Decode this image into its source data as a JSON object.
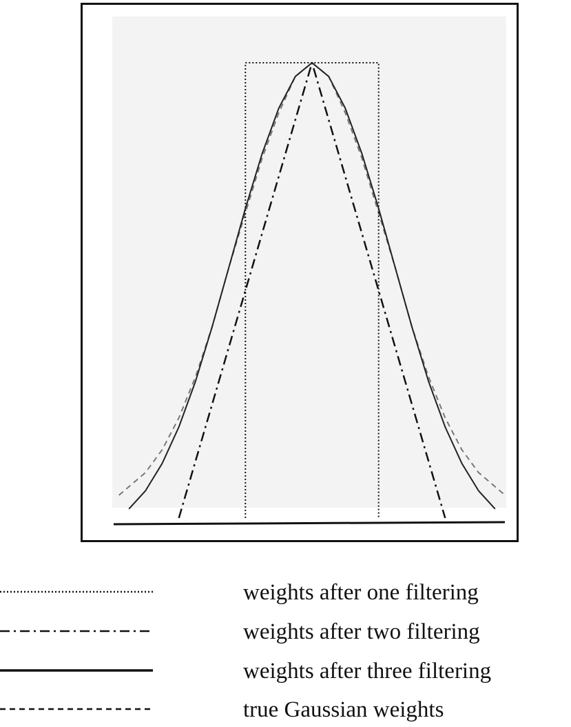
{
  "chart_data": {
    "type": "line",
    "title": "",
    "xlabel": "",
    "ylabel": "",
    "xlim": [
      -3,
      3
    ],
    "ylim": [
      0,
      1
    ],
    "grid": false,
    "legend_position": "bottom",
    "series": [
      {
        "name": "weights after one filtering",
        "style": "dotted",
        "color": "#111111",
        "x": [
          -1,
          -1,
          1,
          1
        ],
        "y": [
          0,
          1,
          1,
          0
        ]
      },
      {
        "name": "weights after two filtering",
        "style": "dashdot",
        "color": "#111111",
        "x": [
          -2,
          0,
          2
        ],
        "y": [
          0,
          1,
          0
        ]
      },
      {
        "name": "weights after three filtering",
        "style": "solid",
        "color": "#222222",
        "x": [
          -2.75,
          -2.5,
          -2.25,
          -2,
          -1.75,
          -1.5,
          -1.25,
          -1,
          -0.75,
          -0.5,
          -0.25,
          0,
          0.25,
          0.5,
          0.75,
          1,
          1.25,
          1.5,
          1.75,
          2,
          2.25,
          2.5,
          2.75
        ],
        "y": [
          0.02,
          0.06,
          0.12,
          0.2,
          0.3,
          0.42,
          0.55,
          0.68,
          0.8,
          0.9,
          0.97,
          1,
          0.97,
          0.9,
          0.8,
          0.68,
          0.55,
          0.42,
          0.3,
          0.2,
          0.12,
          0.06,
          0.02
        ]
      },
      {
        "name": "true Gaussian weights",
        "style": "dashed",
        "color": "#777777",
        "x": [
          -2.9,
          -2.5,
          -2.25,
          -2,
          -1.75,
          -1.5,
          -1.25,
          -1,
          -0.75,
          -0.5,
          -0.25,
          0,
          0.25,
          0.5,
          0.75,
          1,
          1.25,
          1.5,
          1.75,
          2,
          2.25,
          2.5,
          2.9
        ],
        "y": [
          0.05,
          0.1,
          0.15,
          0.22,
          0.31,
          0.42,
          0.55,
          0.67,
          0.79,
          0.89,
          0.97,
          1,
          0.97,
          0.89,
          0.79,
          0.67,
          0.55,
          0.42,
          0.31,
          0.22,
          0.15,
          0.1,
          0.05
        ]
      }
    ]
  }
}
